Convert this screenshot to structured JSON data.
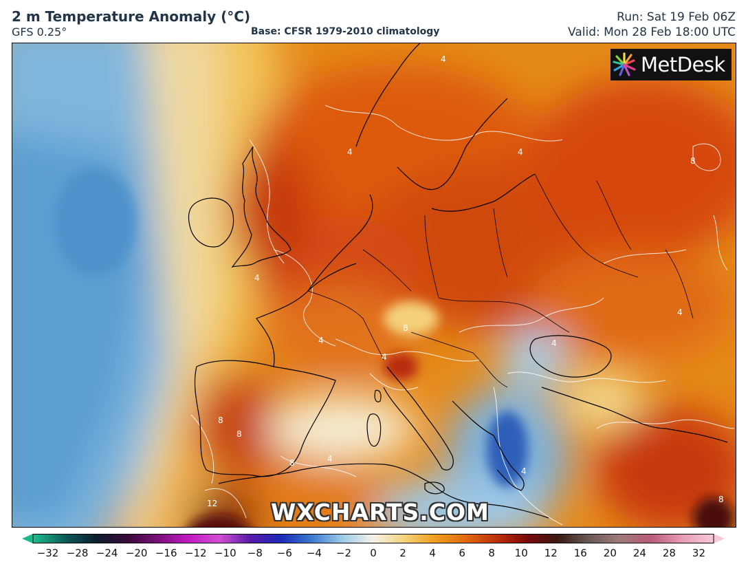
{
  "header": {
    "title": "2 m Temperature Anomaly (°C)",
    "model": "GFS 0.25°",
    "base": "Base: CFSR 1979-2010 climatology",
    "run": "Run: Sat 19 Feb 06Z",
    "valid": "Valid: Mon 28 Feb 18:00 UTC"
  },
  "branding": {
    "logo_text": "MetDesk",
    "logo_icon": "metdesk-starburst-icon",
    "watermark": "WXCHARTS.COM"
  },
  "map": {
    "contour_labels": [
      "4",
      "4",
      "4",
      "4",
      "4",
      "4",
      "4",
      "4",
      "4",
      "4",
      "8",
      "8",
      "8",
      "8",
      "8",
      "8",
      "12"
    ]
  },
  "colorbar": {
    "ticks": [
      "−32",
      "−28",
      "−24",
      "−20",
      "−16",
      "−12",
      "−10",
      "−8",
      "−6",
      "−4",
      "−2",
      "0",
      "2",
      "4",
      "6",
      "8",
      "10",
      "12",
      "16",
      "20",
      "24",
      "28",
      "32"
    ],
    "colors": [
      "#1fb98c",
      "#0c5a5a",
      "#0c1f2e",
      "#3a0a3a",
      "#7a0f7a",
      "#c21ac2",
      "#d24fd2",
      "#5a1aa8",
      "#1a2ab8",
      "#3a7ad0",
      "#9ecbe8",
      "#f6f3e8",
      "#f4d37a",
      "#f0a020",
      "#e26a10",
      "#c0300a",
      "#7a0a0a",
      "#3a1a14",
      "#6a5a56",
      "#a07a7a",
      "#b85a78",
      "#e79ab6",
      "#f7c8d8"
    ]
  }
}
